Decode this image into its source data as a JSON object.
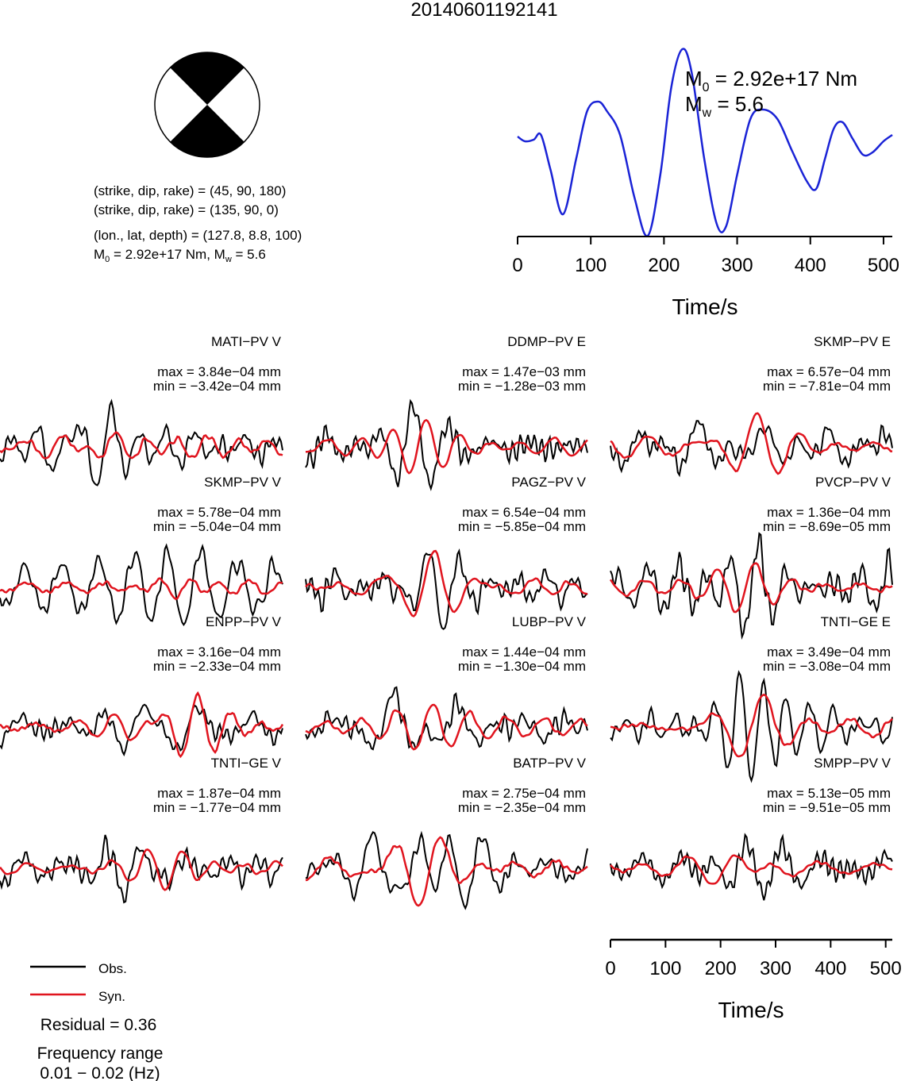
{
  "title": "20140601192141",
  "colors": {
    "obs": "#000000",
    "syn": "#e0141e",
    "stf": "#1a23d6"
  },
  "mechanism": {
    "line1": "(strike, dip, rake) = (45, 90, 180)",
    "line2": "(strike, dip, rake) = (135, 90, 0)",
    "line3": "(lon., lat, depth) = (127.8, 8.8, 100)",
    "m0_label": "M0 = 2.92e+17 Nm, Mw = 5.6",
    "m0_prefix": "M",
    "m0_sub": "0",
    "m0_value": " = 2.92e+17 Nm, M",
    "mw_sub": "w",
    "mw_value": " = 5.6"
  },
  "stf": {
    "m0_main": "M",
    "m0_sub": "0",
    "m0_text": " = 2.92e+17 Nm",
    "mw_main": "M",
    "mw_sub": "w",
    "mw_text": " = 5.6",
    "xlabel": "Time/s",
    "ticks": [
      "0",
      "100",
      "200",
      "300",
      "400",
      "500"
    ]
  },
  "bottom_axis": {
    "xlabel": "Time/s",
    "ticks": [
      "0",
      "100",
      "200",
      "300",
      "400",
      "500"
    ]
  },
  "legend": {
    "obs": "Obs.",
    "syn": "Syn."
  },
  "residual": "Residual = 0.36",
  "freq_line1": "Frequency range",
  "freq_line2": "0.01 − 0.02 (Hz)",
  "chart_data": {
    "type": "line",
    "title": "20140601192141",
    "xlabel": "Time/s",
    "xlim": [
      0,
      512
    ],
    "stf_peak_time": 225,
    "stations": [
      {
        "name": "MATI−PV V",
        "max": "max = 3.84e−04 mm",
        "min": "min = −3.42e−04 mm"
      },
      {
        "name": "DDMP−PV E",
        "max": "max = 1.47e−03 mm",
        "min": "min = −1.28e−03 mm"
      },
      {
        "name": "SKMP−PV E",
        "max": "max = 6.57e−04 mm",
        "min": "min = −7.81e−04 mm"
      },
      {
        "name": "SKMP−PV V",
        "max": "max = 5.78e−04 mm",
        "min": "min = −5.04e−04 mm"
      },
      {
        "name": "PAGZ−PV V",
        "max": "max = 6.54e−04 mm",
        "min": "min = −5.85e−04 mm"
      },
      {
        "name": "PVCP−PV V",
        "max": "max = 1.36e−04 mm",
        "min": "min = −8.69e−05 mm"
      },
      {
        "name": "ENPP−PV V",
        "max": "max = 3.16e−04 mm",
        "min": "min = −2.33e−04 mm"
      },
      {
        "name": "LUBP−PV V",
        "max": "max = 1.44e−04 mm",
        "min": "min = −1.30e−04 mm"
      },
      {
        "name": "TNTI−GE E",
        "max": "max = 3.49e−04 mm",
        "min": "min = −3.08e−04 mm"
      },
      {
        "name": "TNTI−GE V",
        "max": "max = 1.87e−04 mm",
        "min": "min = −1.77e−04 mm"
      },
      {
        "name": "BATP−PV V",
        "max": "max = 2.75e−04 mm",
        "min": "min = −2.35e−04 mm"
      },
      {
        "name": "SMPP−PV V",
        "max": "max = 5.13e−05 mm",
        "min": "min = −9.51e−05 mm"
      }
    ]
  }
}
